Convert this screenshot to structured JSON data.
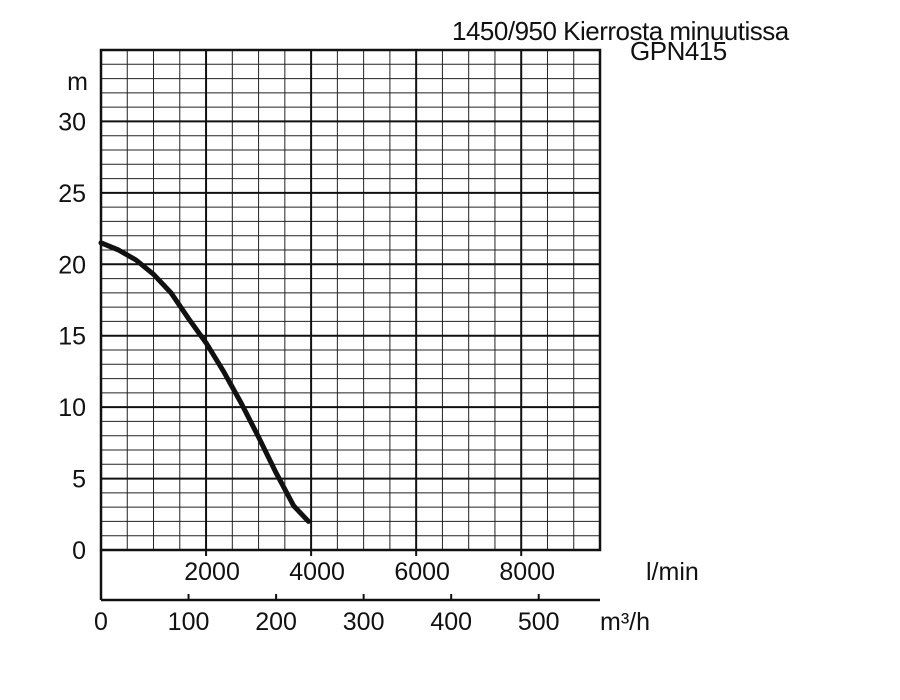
{
  "chart_data": {
    "type": "line",
    "title": "1450/950 Kierrosta minuutissa",
    "subtitle": "GPN415",
    "ylabel": "m",
    "x_unit_primary": "l/min",
    "x_unit_secondary": "m³/h",
    "xlim_lmin": [
      0,
      9500
    ],
    "xlim_m3h": [
      0,
      570
    ],
    "ylim": [
      0,
      35
    ],
    "y_ticks": [
      0,
      5,
      10,
      15,
      20,
      25,
      30
    ],
    "y_tick_labels": [
      "0",
      "5",
      "10",
      "15",
      "20",
      "25",
      "30"
    ],
    "x_ticks_lmin": [
      2000,
      4000,
      6000,
      8000
    ],
    "x_tick_labels_lmin": [
      "2000",
      "4000",
      "6000",
      "8000"
    ],
    "x_ticks_m3h": [
      0,
      100,
      200,
      300,
      400,
      500
    ],
    "x_tick_labels_m3h": [
      "0",
      "100",
      "200",
      "300",
      "400",
      "500"
    ],
    "grid": true,
    "series": [
      {
        "x_m3h": [
          0,
          20,
          40,
          60,
          80,
          100,
          120,
          140,
          160,
          180,
          200,
          220,
          237
        ],
        "y_m": [
          21.5,
          21.0,
          20.3,
          19.3,
          18.0,
          16.2,
          14.5,
          12.5,
          10.3,
          7.9,
          5.4,
          3.1,
          2.0
        ]
      }
    ]
  }
}
